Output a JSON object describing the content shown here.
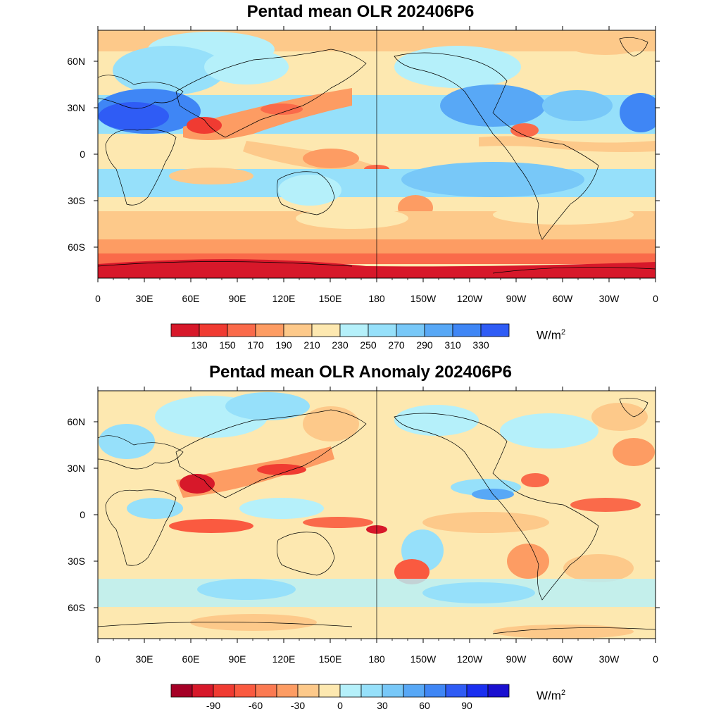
{
  "panels": [
    {
      "title": "Pentad mean OLR 202406P6",
      "units_base": "W/m",
      "units_exp": "2",
      "lat_labels": [
        "60N",
        "30N",
        "0",
        "30S",
        "60S"
      ],
      "lon_labels": [
        "0",
        "30E",
        "60E",
        "90E",
        "120E",
        "150E",
        "180",
        "150W",
        "120W",
        "90W",
        "60W",
        "30W",
        "0"
      ],
      "colorbar": {
        "colors": [
          "#d7182a",
          "#f03b32",
          "#fa6a4a",
          "#fd9c63",
          "#fdc98a",
          "#fde8b0",
          "#b5f0fa",
          "#96e0fa",
          "#78c8f8",
          "#58a8f6",
          "#3f86f5",
          "#2f5cf5"
        ],
        "labels": [
          "130",
          "150",
          "170",
          "190",
          "210",
          "230",
          "250",
          "270",
          "290",
          "310",
          "330"
        ]
      }
    },
    {
      "title": "Pentad mean OLR Anomaly 202406P6",
      "units_base": "W/m",
      "units_exp": "2",
      "lat_labels": [
        "60N",
        "30N",
        "0",
        "30S",
        "60S"
      ],
      "lon_labels": [
        "0",
        "30E",
        "60E",
        "90E",
        "120E",
        "150E",
        "180",
        "150W",
        "120W",
        "90W",
        "60W",
        "30W",
        "0"
      ],
      "colorbar": {
        "colors": [
          "#a50026",
          "#d7182a",
          "#f03b32",
          "#fa5a40",
          "#fb7a52",
          "#fd9c63",
          "#fdc98a",
          "#fde8b0",
          "#b5f0fa",
          "#96e0fa",
          "#78c8f8",
          "#58a8f6",
          "#3f86f5",
          "#2f5cf5",
          "#1a2ff0",
          "#1a10d0"
        ],
        "labels": [
          "-90",
          "-60",
          "-30",
          "0",
          "30",
          "60",
          "90"
        ],
        "label_edges": [
          2,
          4,
          6,
          8,
          10,
          12,
          14
        ]
      }
    }
  ]
}
